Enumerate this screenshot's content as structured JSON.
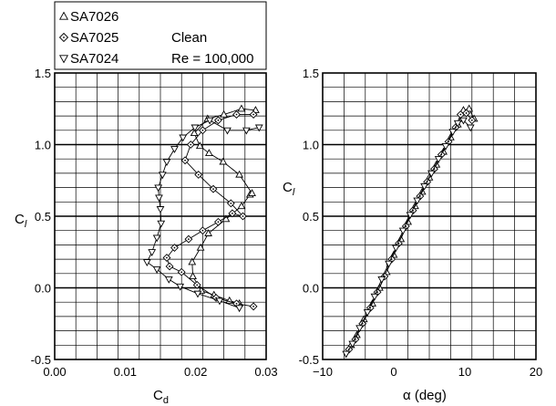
{
  "legend": {
    "entries": [
      "SA7026",
      "SA7025",
      "SA7024"
    ],
    "condition": "Clean",
    "reynolds": "Re = 100,000"
  },
  "chart_data": [
    {
      "type": "line",
      "title": "",
      "xlabel": "C_d",
      "ylabel": "C_l",
      "xlim": [
        0.0,
        0.03
      ],
      "ylim": [
        -0.5,
        1.5
      ],
      "xticks": [
        "0.00",
        "0.01",
        "0.02",
        "0.03"
      ],
      "yticks": [
        "-0.5",
        "0.0",
        "0.5",
        "1.0",
        "1.5"
      ],
      "grid": true,
      "series": [
        {
          "name": "SA7026",
          "marker": "triangle-up",
          "x": [
            0.0262,
            0.0248,
            0.0226,
            0.0208,
            0.0196,
            0.0195,
            0.0207,
            0.0218,
            0.0243,
            0.0265,
            0.0277,
            0.028,
            0.0262,
            0.0239,
            0.0219,
            0.0206,
            0.0198,
            0.0217,
            0.024,
            0.0265,
            0.0285
          ],
          "y": [
            -0.11,
            -0.09,
            -0.05,
            -0.02,
            0.08,
            0.18,
            0.28,
            0.38,
            0.48,
            0.57,
            0.65,
            0.66,
            0.79,
            0.88,
            0.94,
            0.99,
            1.08,
            1.18,
            1.21,
            1.25,
            1.24
          ]
        },
        {
          "name": "SA7025",
          "marker": "diamond",
          "x": [
            0.0282,
            0.0258,
            0.0229,
            0.0202,
            0.018,
            0.0163,
            0.0159,
            0.017,
            0.019,
            0.021,
            0.0232,
            0.0252,
            0.0267,
            0.025,
            0.0225,
            0.0204,
            0.0185,
            0.0193,
            0.021,
            0.0232,
            0.0258,
            0.0282
          ],
          "y": [
            -0.13,
            -0.11,
            -0.07,
            0.02,
            0.11,
            0.15,
            0.21,
            0.28,
            0.34,
            0.4,
            0.46,
            0.52,
            0.5,
            0.59,
            0.69,
            0.79,
            0.89,
            1.0,
            1.1,
            1.17,
            1.21,
            1.21
          ]
        },
        {
          "name": "SA7024",
          "marker": "triangle-down",
          "x": [
            0.0262,
            0.0234,
            0.0203,
            0.0178,
            0.0162,
            0.0145,
            0.0131,
            0.0138,
            0.0145,
            0.0151,
            0.015,
            0.0148,
            0.0147,
            0.0153,
            0.0159,
            0.017,
            0.0182,
            0.0199,
            0.022,
            0.0245,
            0.0272,
            0.029
          ],
          "y": [
            -0.14,
            -0.09,
            -0.04,
            0.01,
            0.06,
            0.13,
            0.18,
            0.25,
            0.35,
            0.45,
            0.55,
            0.63,
            0.7,
            0.79,
            0.88,
            0.97,
            1.05,
            1.12,
            1.17,
            1.1,
            1.1,
            1.12
          ]
        }
      ]
    },
    {
      "type": "line",
      "title": "",
      "xlabel": "α (deg)",
      "ylabel": "C_l",
      "xlim": [
        -10,
        20
      ],
      "ylim": [
        -0.5,
        1.5
      ],
      "xticks": [
        "−10",
        "0",
        "10",
        "20"
      ],
      "yticks": [
        "-0.5",
        "0.0",
        "0.5",
        "1.0",
        "1.5"
      ],
      "grid": true,
      "series": [
        {
          "name": "SA7026",
          "marker": "triangle-up",
          "x": [
            -6.0,
            -5.2,
            -4.2,
            -3.0,
            -2.0,
            -1.0,
            0.0,
            1.0,
            2.0,
            3.0,
            4.0,
            5.0,
            6.0,
            7.0,
            8.0,
            9.0,
            9.8,
            10.6,
            11.3
          ],
          "y": [
            -0.4,
            -0.33,
            -0.22,
            -0.11,
            0.0,
            0.11,
            0.23,
            0.34,
            0.46,
            0.57,
            0.67,
            0.77,
            0.86,
            0.95,
            1.05,
            1.14,
            1.24,
            1.25,
            1.18
          ]
        },
        {
          "name": "SA7025",
          "marker": "diamond",
          "x": [
            -6.3,
            -5.4,
            -4.4,
            -3.3,
            -2.3,
            -1.3,
            -0.3,
            0.7,
            1.7,
            2.7,
            3.7,
            4.7,
            5.7,
            6.7,
            7.7,
            8.7,
            9.4,
            10.2,
            11.0
          ],
          "y": [
            -0.43,
            -0.36,
            -0.25,
            -0.14,
            -0.03,
            0.08,
            0.2,
            0.31,
            0.43,
            0.54,
            0.64,
            0.74,
            0.83,
            0.93,
            1.02,
            1.12,
            1.21,
            1.22,
            1.17
          ]
        },
        {
          "name": "SA7024",
          "marker": "triangle-down",
          "x": [
            -6.7,
            -5.8,
            -4.8,
            -3.7,
            -2.7,
            -1.7,
            -0.7,
            0.3,
            1.3,
            2.3,
            3.3,
            4.3,
            5.3,
            6.3,
            7.3,
            8.3,
            9.0,
            9.8,
            10.8
          ],
          "y": [
            -0.46,
            -0.39,
            -0.28,
            -0.17,
            -0.06,
            0.06,
            0.17,
            0.28,
            0.4,
            0.51,
            0.61,
            0.71,
            0.8,
            0.9,
            0.99,
            1.09,
            1.15,
            1.17,
            1.12
          ]
        }
      ]
    }
  ]
}
